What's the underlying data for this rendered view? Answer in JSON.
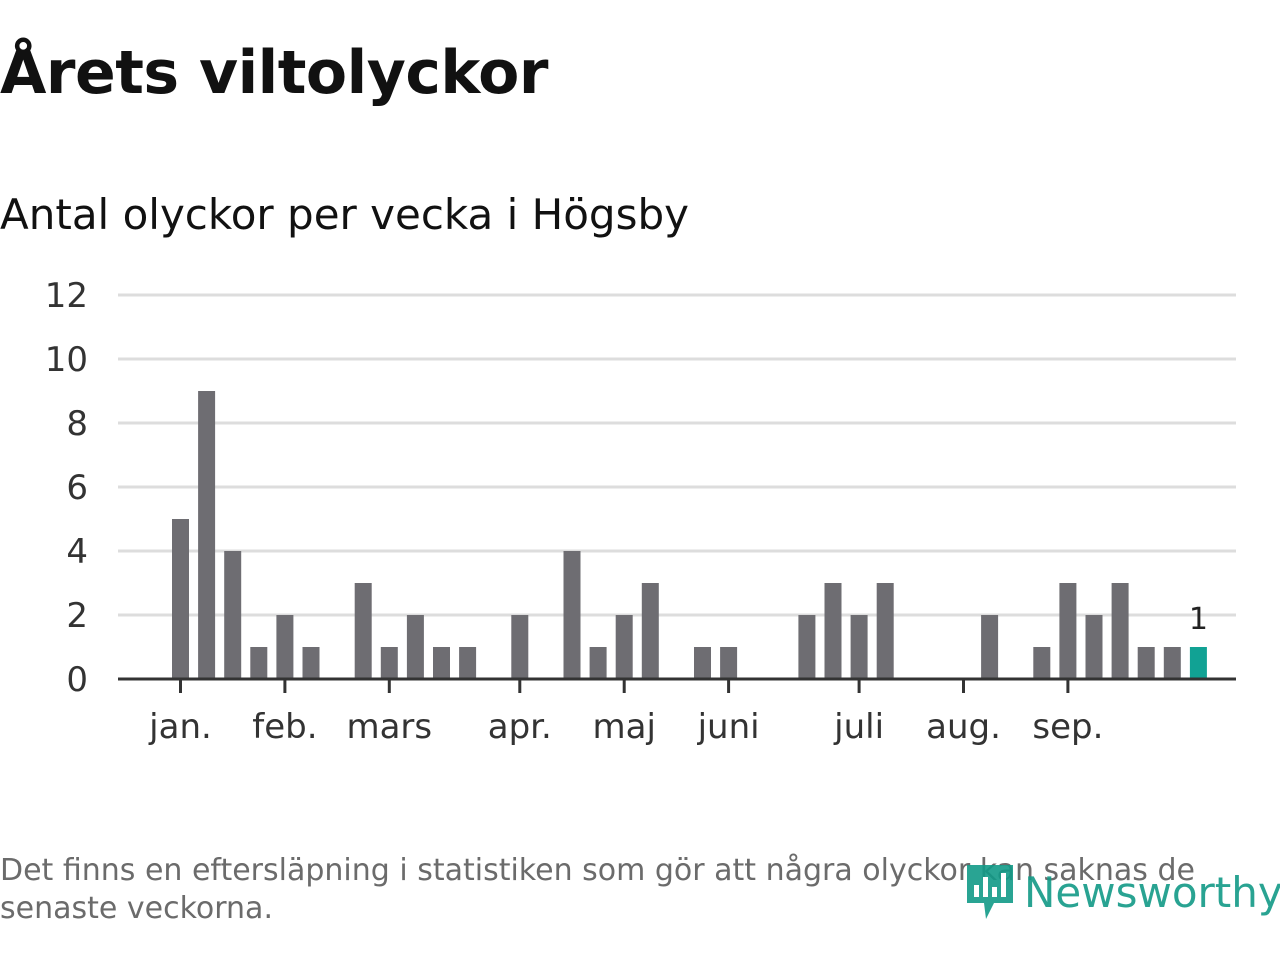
{
  "title": "Årets viltolyckor",
  "subtitle": "Antal olyckor per vecka i Högsby",
  "footnote": "Det finns en eftersläpning i statistiken som gör att några olyckor kan saknas de senaste veckorna.",
  "brand": {
    "name": "Newsworthy",
    "icon": "newsworthy-logo-icon",
    "color": "#129a87"
  },
  "colors": {
    "bar": "#6e6d72",
    "highlight": "#11a294",
    "grid": "#dddddd",
    "axis": "#333333"
  },
  "chart_data": {
    "type": "bar",
    "title": "Antal olyckor per vecka i Högsby",
    "xlabel": "",
    "ylabel": "",
    "ylim": [
      0,
      12
    ],
    "yticks": [
      0,
      2,
      4,
      6,
      8,
      10,
      12
    ],
    "grid": true,
    "x": [
      1,
      2,
      3,
      4,
      5,
      6,
      7,
      8,
      9,
      10,
      11,
      12,
      13,
      14,
      15,
      16,
      17,
      18,
      19,
      20,
      21,
      22,
      23,
      24,
      25,
      26,
      27,
      28,
      29,
      30,
      31,
      32,
      33,
      34,
      35,
      36,
      37,
      38,
      39,
      40
    ],
    "values": [
      5,
      9,
      4,
      1,
      2,
      1,
      0,
      3,
      1,
      2,
      1,
      1,
      0,
      2,
      0,
      4,
      1,
      2,
      3,
      0,
      1,
      1,
      0,
      0,
      2,
      3,
      2,
      3,
      0,
      0,
      0,
      2,
      0,
      1,
      3,
      2,
      3,
      1,
      1,
      1
    ],
    "highlight_index": 39,
    "highlight_label": "1",
    "month_ticks": [
      {
        "label": "jan.",
        "week": 1
      },
      {
        "label": "feb.",
        "week": 5
      },
      {
        "label": "mars",
        "week": 9
      },
      {
        "label": "apr.",
        "week": 14
      },
      {
        "label": "maj",
        "week": 18
      },
      {
        "label": "juni",
        "week": 22
      },
      {
        "label": "juli",
        "week": 27
      },
      {
        "label": "aug.",
        "week": 31
      },
      {
        "label": "sep.",
        "week": 35
      }
    ]
  }
}
